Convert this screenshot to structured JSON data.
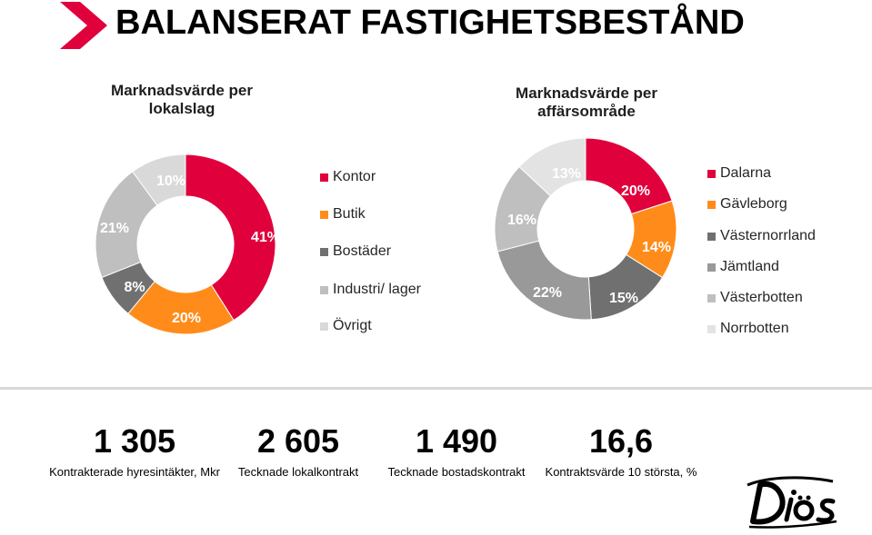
{
  "header": {
    "title": "BALANSERAT FASTIGHETSBESTÅND",
    "accent_color": "#e0003c"
  },
  "chart_data": [
    {
      "type": "pie",
      "title": "Marknadsvärde per lokalslag",
      "categories": [
        "Kontor",
        "Butik",
        "Bostäder",
        "Industri/ lager",
        "Övrigt"
      ],
      "values": [
        41,
        20,
        8,
        21,
        10
      ],
      "labels": [
        "41%",
        "20%",
        "8%",
        "21%",
        "10%"
      ],
      "colors": [
        "#e0003c",
        "#ff8c1a",
        "#707070",
        "#bfbfbf",
        "#d9d9d9"
      ],
      "legend": "right"
    },
    {
      "type": "pie",
      "title": "Marknadsvärde per affärsområde",
      "categories": [
        "Dalarna",
        "Gävleborg",
        "Västernorrland",
        "Jämtland",
        "Västerbotten",
        "Norrbotten"
      ],
      "values": [
        20,
        14,
        15,
        22,
        16,
        13
      ],
      "labels": [
        "20%",
        "14%",
        "15%",
        "22%",
        "16%",
        "13%"
      ],
      "colors": [
        "#e0003c",
        "#ff8c1a",
        "#707070",
        "#999999",
        "#bfbfbf",
        "#e3e3e3"
      ],
      "legend": "right"
    }
  ],
  "kpis": [
    {
      "value": "1 305",
      "caption": "Kontrakterade hyresintäkter, Mkr"
    },
    {
      "value": "2 605",
      "caption": "Tecknade lokalkontrakt"
    },
    {
      "value": "1 490",
      "caption": "Tecknade bostadskontrakt"
    },
    {
      "value": "16,6",
      "caption": "Kontraktsvärde 10 största, %"
    }
  ],
  "brand": {
    "logo_text": "Diös",
    "logo_color": "#000000"
  }
}
